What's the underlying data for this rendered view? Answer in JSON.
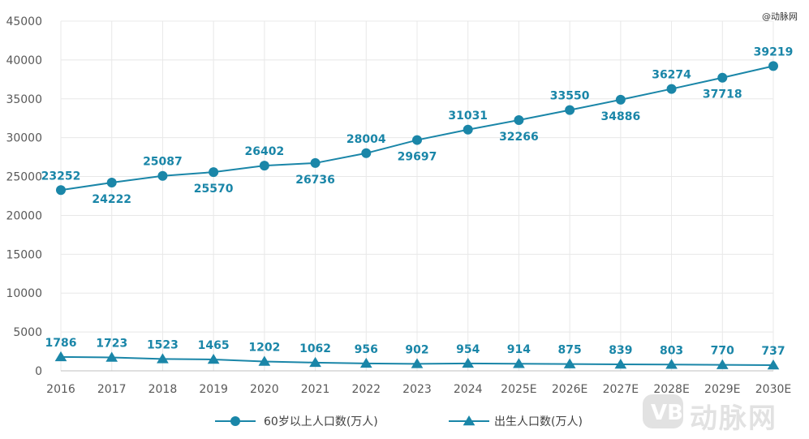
{
  "watermark": {
    "top_right": "@动脉网",
    "logo_text": "动脉网"
  },
  "colors": {
    "series": "#1a86a8",
    "grid": "#e8e8e8",
    "axis": "#bfbfbf",
    "tick": "#595959"
  },
  "chart_data": {
    "type": "line",
    "categories": [
      "2016",
      "2017",
      "2018",
      "2019",
      "2020",
      "2021",
      "2022",
      "2023",
      "2024",
      "2025E",
      "2026E",
      "2027E",
      "2028E",
      "2029E",
      "2030E"
    ],
    "ylim": [
      0,
      45000
    ],
    "yticks": [
      0,
      5000,
      10000,
      15000,
      20000,
      25000,
      30000,
      35000,
      40000,
      45000
    ],
    "grid": true,
    "legend_position": "bottom",
    "series": [
      {
        "name": "60岁以上人口数(万人)",
        "marker": "circle",
        "color": "#1a86a8",
        "values": [
          23252,
          24222,
          25087,
          25570,
          26402,
          26736,
          28004,
          29697,
          31031,
          32266,
          33550,
          34886,
          36274,
          37718,
          39219
        ],
        "label_side": [
          "above",
          "below",
          "above",
          "below",
          "above",
          "below",
          "above",
          "below",
          "above",
          "below",
          "above",
          "below",
          "above",
          "below",
          "above"
        ]
      },
      {
        "name": "出生人口数(万人)",
        "marker": "triangle",
        "color": "#1a86a8",
        "values": [
          1786,
          1723,
          1523,
          1465,
          1202,
          1062,
          956,
          902,
          954,
          914,
          875,
          839,
          803,
          770,
          737
        ],
        "label_side": [
          "above",
          "above",
          "above",
          "above",
          "above",
          "above",
          "above",
          "above",
          "above",
          "above",
          "above",
          "above",
          "above",
          "above",
          "above"
        ]
      }
    ]
  }
}
